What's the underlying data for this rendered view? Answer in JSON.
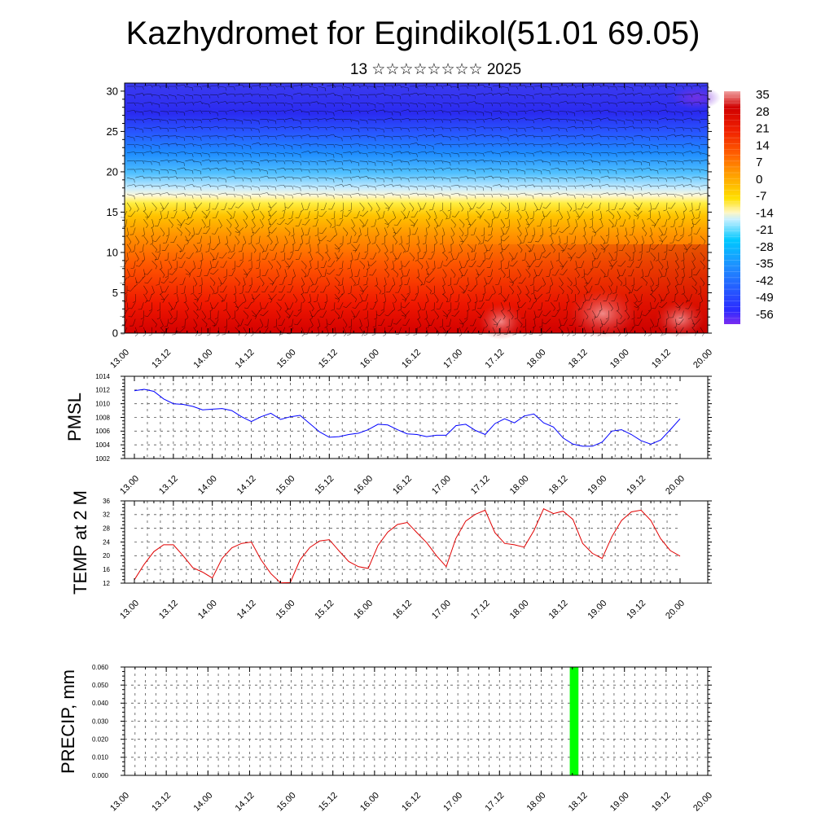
{
  "title": "Kazhydromet for Egindikol(51.01 69.05)",
  "subtitle": "13 ☆☆☆☆☆☆☆☆ 2025",
  "time_ticks": [
    "13.00",
    "13.12",
    "14.00",
    "14.12",
    "15.00",
    "15.12",
    "16.00",
    "16.12",
    "17.00",
    "17.12",
    "18.00",
    "18.12",
    "19.00",
    "19.12",
    "20.00"
  ],
  "chart_data": [
    {
      "type": "heatmap",
      "description_of_fill": "temperature cross-section with wind barbs",
      "xlabel": "",
      "ylabel": "",
      "ylim": [
        0,
        31
      ],
      "yticks": [
        0,
        5,
        10,
        15,
        20,
        25,
        30
      ],
      "colorbar": {
        "labels": [
          "35",
          "28",
          "21",
          "14",
          "7",
          "0",
          "-7",
          "-14",
          "-21",
          "-28",
          "-35",
          "-42",
          "-49",
          "-56"
        ],
        "range": [
          -63,
          42
        ],
        "stops": [
          "#7a2cf0",
          "#2b2bff",
          "#1e90ff",
          "#00c8ff",
          "#c8f0ff",
          "#fff6c0",
          "#ffe000",
          "#ffa000",
          "#ff6000",
          "#f02000",
          "#d00000",
          "#f0a0a0"
        ]
      }
    },
    {
      "type": "line",
      "ylabel": "PMSL",
      "ylim": [
        1002,
        1014
      ],
      "yticks": [
        1002,
        1004,
        1006,
        1008,
        1010,
        1012,
        1014
      ],
      "color": "#0000ff",
      "x_step_hours": 3,
      "values": [
        1011.9,
        1012.1,
        1011.8,
        1010.7,
        1010.0,
        1009.9,
        1009.6,
        1009.1,
        1009.2,
        1009.3,
        1009.0,
        1008.1,
        1007.4,
        1008.1,
        1008.6,
        1007.7,
        1008.1,
        1008.3,
        1007.1,
        1005.9,
        1005.1,
        1005.2,
        1005.5,
        1005.7,
        1006.2,
        1007.0,
        1006.9,
        1006.2,
        1005.6,
        1005.5,
        1005.2,
        1005.4,
        1005.4,
        1006.8,
        1007.0,
        1006.1,
        1005.5,
        1007.1,
        1007.8,
        1007.2,
        1008.2,
        1008.5,
        1007.2,
        1006.6,
        1005.0,
        1004.1,
        1003.8,
        1003.8,
        1004.4,
        1006.0,
        1006.2,
        1005.5,
        1004.6,
        1004.1,
        1004.7,
        1006.2,
        1007.8
      ]
    },
    {
      "type": "line",
      "ylabel": "TEMP at 2 M",
      "ylim": [
        12,
        36
      ],
      "yticks": [
        12,
        16,
        20,
        24,
        28,
        32,
        36
      ],
      "color": "#e00000",
      "x_step_hours": 3,
      "values": [
        13.0,
        17.5,
        21.2,
        23.2,
        23.2,
        20.0,
        16.5,
        15.2,
        13.5,
        19.2,
        22.3,
        23.6,
        24.0,
        18.8,
        14.8,
        12.1,
        12.2,
        18.8,
        22.4,
        24.3,
        24.7,
        21.4,
        18.3,
        16.8,
        16.3,
        23.0,
        26.9,
        29.1,
        29.7,
        26.7,
        23.8,
        20.0,
        16.8,
        25.1,
        30.1,
        32.1,
        33.3,
        26.7,
        23.6,
        23.2,
        22.5,
        27.3,
        33.7,
        32.3,
        33.0,
        30.6,
        23.6,
        20.7,
        19.2,
        25.6,
        30.3,
        32.8,
        33.3,
        30.3,
        25.0,
        21.5,
        19.9
      ]
    },
    {
      "type": "bar",
      "ylabel": "PRECIP, mm",
      "ylim": [
        0,
        0.06
      ],
      "yticks": [
        "0.000",
        "0.010",
        "0.020",
        "0.030",
        "0.040",
        "0.050",
        "0.060"
      ],
      "color": "#00ff00",
      "bars": [
        {
          "x_hours": 129.5,
          "width_hours": 2.5,
          "value": 0.06
        }
      ]
    }
  ]
}
